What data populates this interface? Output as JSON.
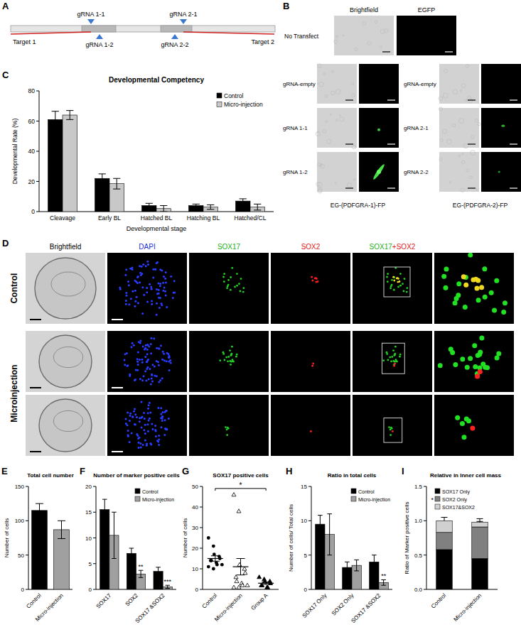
{
  "figure": {
    "panel_a": {
      "label": "A",
      "guides": [
        "gRNA 1-1",
        "gRNA 1-2",
        "gRNA 2-1",
        "gRNA 2-2"
      ],
      "targets": [
        "Target 1",
        "Target 2"
      ]
    },
    "panel_b": {
      "label": "B",
      "columns": [
        "Brightfield",
        "EGFP"
      ],
      "control_row": "No Transfect",
      "groups": [
        {
          "rows": [
            "gRNA-empty",
            "gRNA 1-1",
            "gRNA 1-2"
          ],
          "caption": "EG-(PDFGRA-1)-FP"
        },
        {
          "rows": [
            "gRNA-empty",
            "gRNA 2-1",
            "gRNA 2-2"
          ],
          "caption": "EG-(PDFGRA-2)-FP"
        }
      ]
    },
    "panel_d": {
      "label": "D",
      "columns": [
        "Brightfield",
        "DAPI",
        "SOX17",
        "SOX2",
        "SOX17+SOX2"
      ],
      "rows": [
        "Control",
        "Microinjection"
      ]
    }
  },
  "chart_data": [
    {
      "panel": "C",
      "type": "bar",
      "title": "Developmental Competency",
      "y_label": "Developmental Rate (%)",
      "x_label": "Developmental stage",
      "categories": [
        "Cleavage",
        "Early BL",
        "Hatched BL",
        "Hatching BL",
        "Hatched/CL"
      ],
      "series": [
        {
          "name": "Control",
          "color": "#000000",
          "values": [
            61,
            22,
            4,
            4,
            7
          ],
          "errors": [
            5.5,
            3,
            1.5,
            1,
            1.5
          ]
        },
        {
          "name": "Micro-injection",
          "color": "#c8c8c8",
          "values": [
            64,
            18.5,
            2,
            3,
            3
          ],
          "errors": [
            3,
            3.5,
            2,
            1.5,
            2
          ]
        }
      ],
      "ylim": [
        0,
        80
      ],
      "yticks": [
        0,
        20,
        40,
        60,
        80
      ],
      "legend": "upper right"
    },
    {
      "panel": "E",
      "type": "bar",
      "title": "Total cell number",
      "y_label": "Number of cells",
      "categories": [
        "Control",
        "Micro-injection"
      ],
      "values": [
        115,
        87
      ],
      "errors": [
        10,
        13
      ],
      "colors": [
        "#000000",
        "#a0a0a0"
      ],
      "ylim": [
        0,
        150
      ],
      "yticks": [
        0,
        50,
        100,
        150
      ]
    },
    {
      "panel": "F",
      "type": "bar",
      "title": "Number of marker positive cells",
      "categories": [
        "SOX17",
        "SOX2",
        "SOX17 &SOX2"
      ],
      "series": [
        {
          "name": "Control",
          "color": "#000000",
          "values": [
            15.5,
            7,
            3.5
          ],
          "errors": [
            2,
            1,
            0.8
          ]
        },
        {
          "name": "Micro-injection",
          "color": "#a0a0a0",
          "values": [
            10.5,
            3,
            0.5
          ],
          "errors": [
            4.5,
            0.7,
            0.3
          ],
          "significance": [
            null,
            "**",
            "***"
          ]
        }
      ],
      "ylim": [
        0,
        20
      ],
      "yticks": [
        0,
        5,
        10,
        15,
        20
      ],
      "legend": "upper right"
    },
    {
      "panel": "G",
      "type": "scatter",
      "title": "SOX17 positive cells",
      "y_label": "Number of cells",
      "series": [
        {
          "name": "Control",
          "marker": "circle",
          "color": "#000000",
          "values": [
            25,
            21,
            17,
            16,
            15,
            14,
            14,
            13,
            12,
            12,
            11,
            10
          ],
          "mean": 15,
          "sem": 1.3
        },
        {
          "name": "Micro-injection",
          "marker": "triangle-open",
          "color": "#000000",
          "values": [
            46,
            38,
            12,
            10,
            8,
            6,
            4,
            3,
            2,
            2,
            1,
            1
          ],
          "mean": 11,
          "sem": 4
        },
        {
          "name": "Group A",
          "marker": "triangle",
          "color": "#000000",
          "values": [
            6,
            5,
            4,
            4,
            3,
            2,
            2,
            1,
            1
          ],
          "mean": 3,
          "sem": 0.6
        }
      ],
      "ylim": [
        0,
        50
      ],
      "yticks": [
        0,
        10,
        20,
        30,
        40,
        50
      ],
      "annotations": [
        {
          "text": "*",
          "from": 0,
          "to": 2,
          "y": 49
        }
      ]
    },
    {
      "panel": "H",
      "type": "bar",
      "title": "Ratio in total cells",
      "y_label": "Number of cells/ Total cells",
      "categories": [
        "SOX17 Only",
        "SOX2 Only",
        "SOX17 &SOX2"
      ],
      "series": [
        {
          "name": "Control",
          "color": "#000000",
          "values": [
            9.5,
            3.2,
            4
          ],
          "errors": [
            1.3,
            0.8,
            1
          ]
        },
        {
          "name": "Micro-injection",
          "color": "#a0a0a0",
          "values": [
            8,
            3.5,
            1
          ],
          "errors": [
            3,
            0.8,
            0.4
          ],
          "significance": [
            null,
            null,
            "**"
          ]
        }
      ],
      "ylim": [
        0,
        15
      ],
      "yticks": [
        0,
        5,
        10,
        15
      ],
      "legend": "upper right"
    },
    {
      "panel": "I",
      "type": "bar",
      "stacked": true,
      "title": "Relative in Inner cell mass",
      "y_label": "Ratio of Marker positive cells",
      "categories": [
        "Control",
        "Micro-injection"
      ],
      "series": [
        {
          "name": "SOX17 Only",
          "color": "#000000",
          "values": [
            0.58,
            0.45
          ],
          "errors": [
            0.05,
            0.1
          ]
        },
        {
          "name": "SOX2 Only",
          "color": "#808080",
          "values": [
            0.25,
            0.46
          ],
          "errors": [
            0.05,
            0.08
          ],
          "significance": "*"
        },
        {
          "name": "SOX17&SOX2",
          "color": "#d0d0d0",
          "values": [
            0.17,
            0.07
          ],
          "errors": [
            0.05,
            0.05
          ]
        }
      ],
      "ylim": [
        0,
        1.5
      ],
      "yticks": [
        {
          "value": 0,
          "label": "0.0"
        },
        {
          "value": 0.5,
          "label": "0.5"
        },
        {
          "value": 1,
          "label": "1.0"
        },
        {
          "value": 1.5,
          "label": "1.5"
        }
      ],
      "legend": "upper left"
    }
  ]
}
